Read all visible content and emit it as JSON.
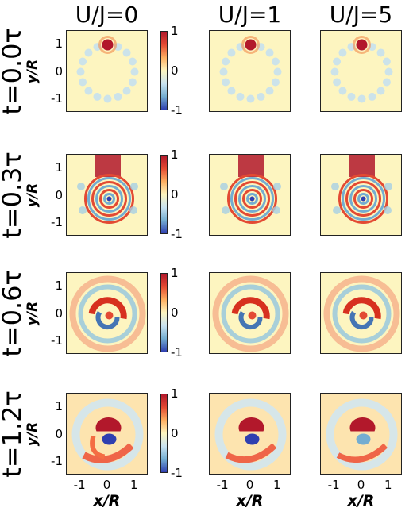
{
  "chart_data": {
    "type": "heatmap",
    "columns": [
      "U/J=0",
      "U/J=1",
      "U/J=5"
    ],
    "rows": [
      "t=0.0τ",
      "t=0.3τ",
      "t=0.6τ",
      "t=1.2τ"
    ],
    "xlabel": "x/R",
    "ylabel": "y/R",
    "x_ticks": [
      "-1",
      "0",
      "1"
    ],
    "y_ticks": [
      "1",
      "0",
      "-1"
    ],
    "xlim": [
      -1.5,
      1.5
    ],
    "ylim": [
      -1.5,
      1.5
    ],
    "colorbar": {
      "ticks": [
        "1",
        "0",
        "-1"
      ],
      "range": [
        -1,
        1
      ]
    },
    "colors": {
      "positive": "#b2182b",
      "zero": "#fdf5c0",
      "negative": "#2f3fb0"
    }
  }
}
